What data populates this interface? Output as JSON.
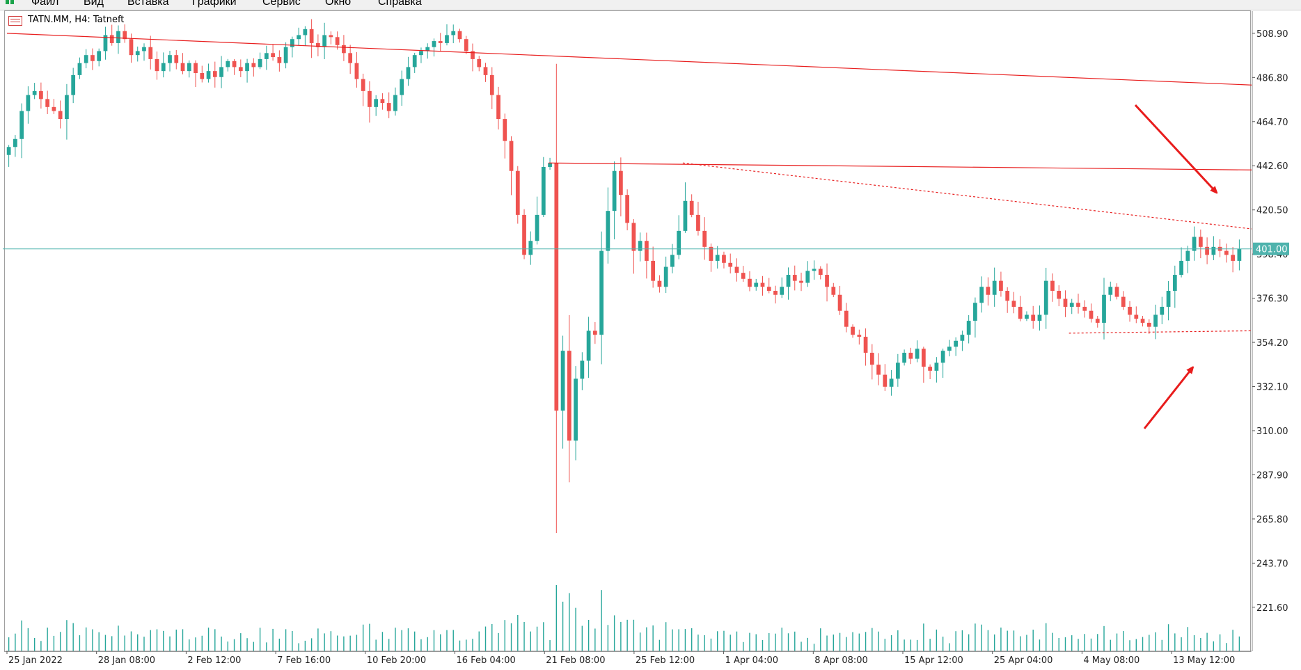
{
  "menu": {
    "items": [
      "Файл",
      "Вид",
      "Вставка",
      "Графики",
      "Сервис",
      "Окно",
      "Справка"
    ]
  },
  "chart": {
    "title": "TATN.MM, H4:  Tatneft",
    "current_price_label": "401.00",
    "colors": {
      "up": "#26a69a",
      "down": "#ef5350",
      "trendline": "#e82020",
      "bid_line": "#4fb3ad",
      "arrow": "#e81c1c"
    }
  },
  "chart_data": {
    "type": "candlestick",
    "symbol": "TATN.MM",
    "timeframe": "H4",
    "ylim": [
      199.6,
      520.0
    ],
    "y_ticks": [
      "508.90",
      "486.80",
      "464.70",
      "442.60",
      "420.50",
      "398.40",
      "376.30",
      "354.20",
      "332.10",
      "310.00",
      "287.90",
      "265.80",
      "243.70",
      "221.60"
    ],
    "x_ticks": [
      "25 Jan 2022",
      "28 Jan 08:00",
      "2 Feb 12:00",
      "7 Feb 16:00",
      "10 Feb 20:00",
      "16 Feb 04:00",
      "21 Feb 08:00",
      "25 Feb 12:00",
      "1 Apr 04:00",
      "8 Apr 08:00",
      "15 Apr 12:00",
      "25 Apr 04:00",
      "4 May 08:00",
      "13 May 12:00"
    ],
    "current_price": 401.0,
    "series_close": [
      452,
      456,
      470,
      478,
      480,
      476,
      472,
      470,
      466,
      478,
      488,
      494,
      498,
      495,
      500,
      508,
      504,
      510,
      506,
      498,
      500,
      502,
      496,
      490,
      494,
      498,
      494,
      490,
      494,
      489,
      486,
      490,
      487,
      492,
      495,
      492,
      490,
      494,
      492,
      496,
      499,
      497,
      494,
      502,
      506,
      508,
      511,
      504,
      502,
      508,
      507,
      503,
      499,
      494,
      486,
      480,
      472,
      476,
      474,
      470,
      478,
      486,
      492,
      498,
      500,
      502,
      505,
      504,
      508,
      510,
      506,
      500,
      496,
      492,
      488,
      478,
      466,
      455,
      440,
      418,
      398,
      405,
      418,
      442,
      444,
      320,
      350,
      305,
      336,
      345,
      360,
      358,
      400,
      420,
      440,
      428,
      414,
      400,
      405,
      395,
      385,
      382,
      392,
      398,
      410,
      425,
      418,
      410,
      402,
      395,
      398,
      394,
      392,
      389,
      386,
      382,
      384,
      382,
      380,
      378,
      382,
      388,
      385,
      384,
      390,
      391,
      388,
      382,
      378,
      370,
      362,
      358,
      357,
      349,
      343,
      338,
      332,
      336,
      344,
      349,
      346,
      351,
      342,
      340,
      344,
      350,
      352,
      355,
      358,
      365,
      374,
      382,
      378,
      385,
      380,
      375,
      372,
      366,
      368,
      365,
      368,
      385,
      380,
      376,
      372,
      374,
      372,
      370,
      366,
      364,
      378,
      382,
      377,
      372,
      368,
      366,
      364,
      362,
      368,
      372,
      380,
      388,
      395,
      400,
      407,
      402,
      398,
      402,
      400,
      398,
      395,
      401
    ],
    "trendlines": [
      {
        "style": "solid",
        "from": {
          "x": "25 Jan 2022",
          "y": 508.9
        },
        "to": {
          "x": "13 May 12:00",
          "y": 483.0
        }
      },
      {
        "style": "solid",
        "from": {
          "x": "21 Feb 08:00",
          "y": 444.0
        },
        "to": {
          "x": "13 May 12:00",
          "y": 440.5
        }
      },
      {
        "style": "dashed",
        "from": {
          "x": "25 Feb 12:00",
          "y": 444.0
        },
        "to": {
          "x": "13 May 12:00",
          "y": 411.0
        }
      },
      {
        "style": "dashed",
        "from": {
          "x": "25 Apr 04:00",
          "y": 358.8
        },
        "to": {
          "x": "13 May 12:00",
          "y": 360.0
        }
      }
    ],
    "annotations": [
      {
        "type": "arrow",
        "direction": "down-right",
        "color": "red"
      },
      {
        "type": "arrow",
        "direction": "up-right",
        "color": "red"
      }
    ],
    "volume": true,
    "grid": false
  }
}
